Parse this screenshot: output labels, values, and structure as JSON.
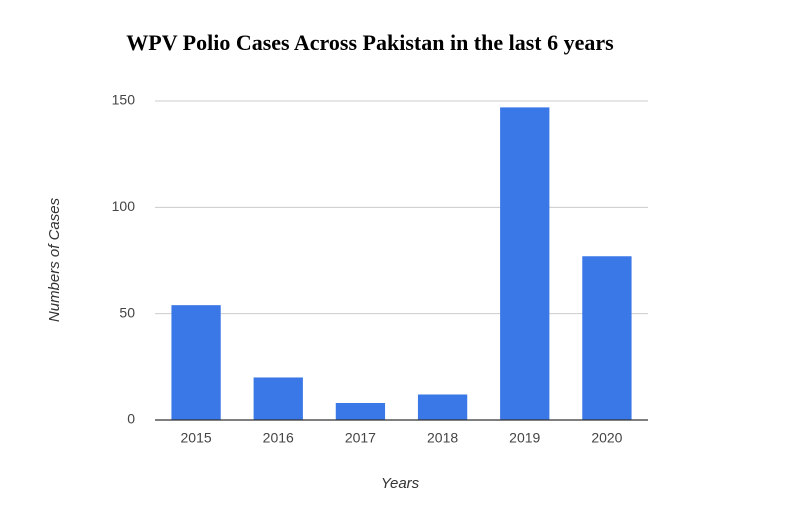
{
  "chart_data": {
    "type": "bar",
    "title": "WPV Polio Cases Across Pakistan in the last 6 years",
    "x_label": "Years",
    "y_label": "Numbers of Cases",
    "categories": [
      "2015",
      "2016",
      "2017",
      "2018",
      "2019",
      "2020"
    ],
    "values": [
      54,
      20,
      8,
      12,
      147,
      77
    ],
    "color": "#3b78e7",
    "ylim": [
      0,
      150
    ],
    "yticks": [
      0,
      50,
      100,
      150
    ],
    "grid": true
  }
}
